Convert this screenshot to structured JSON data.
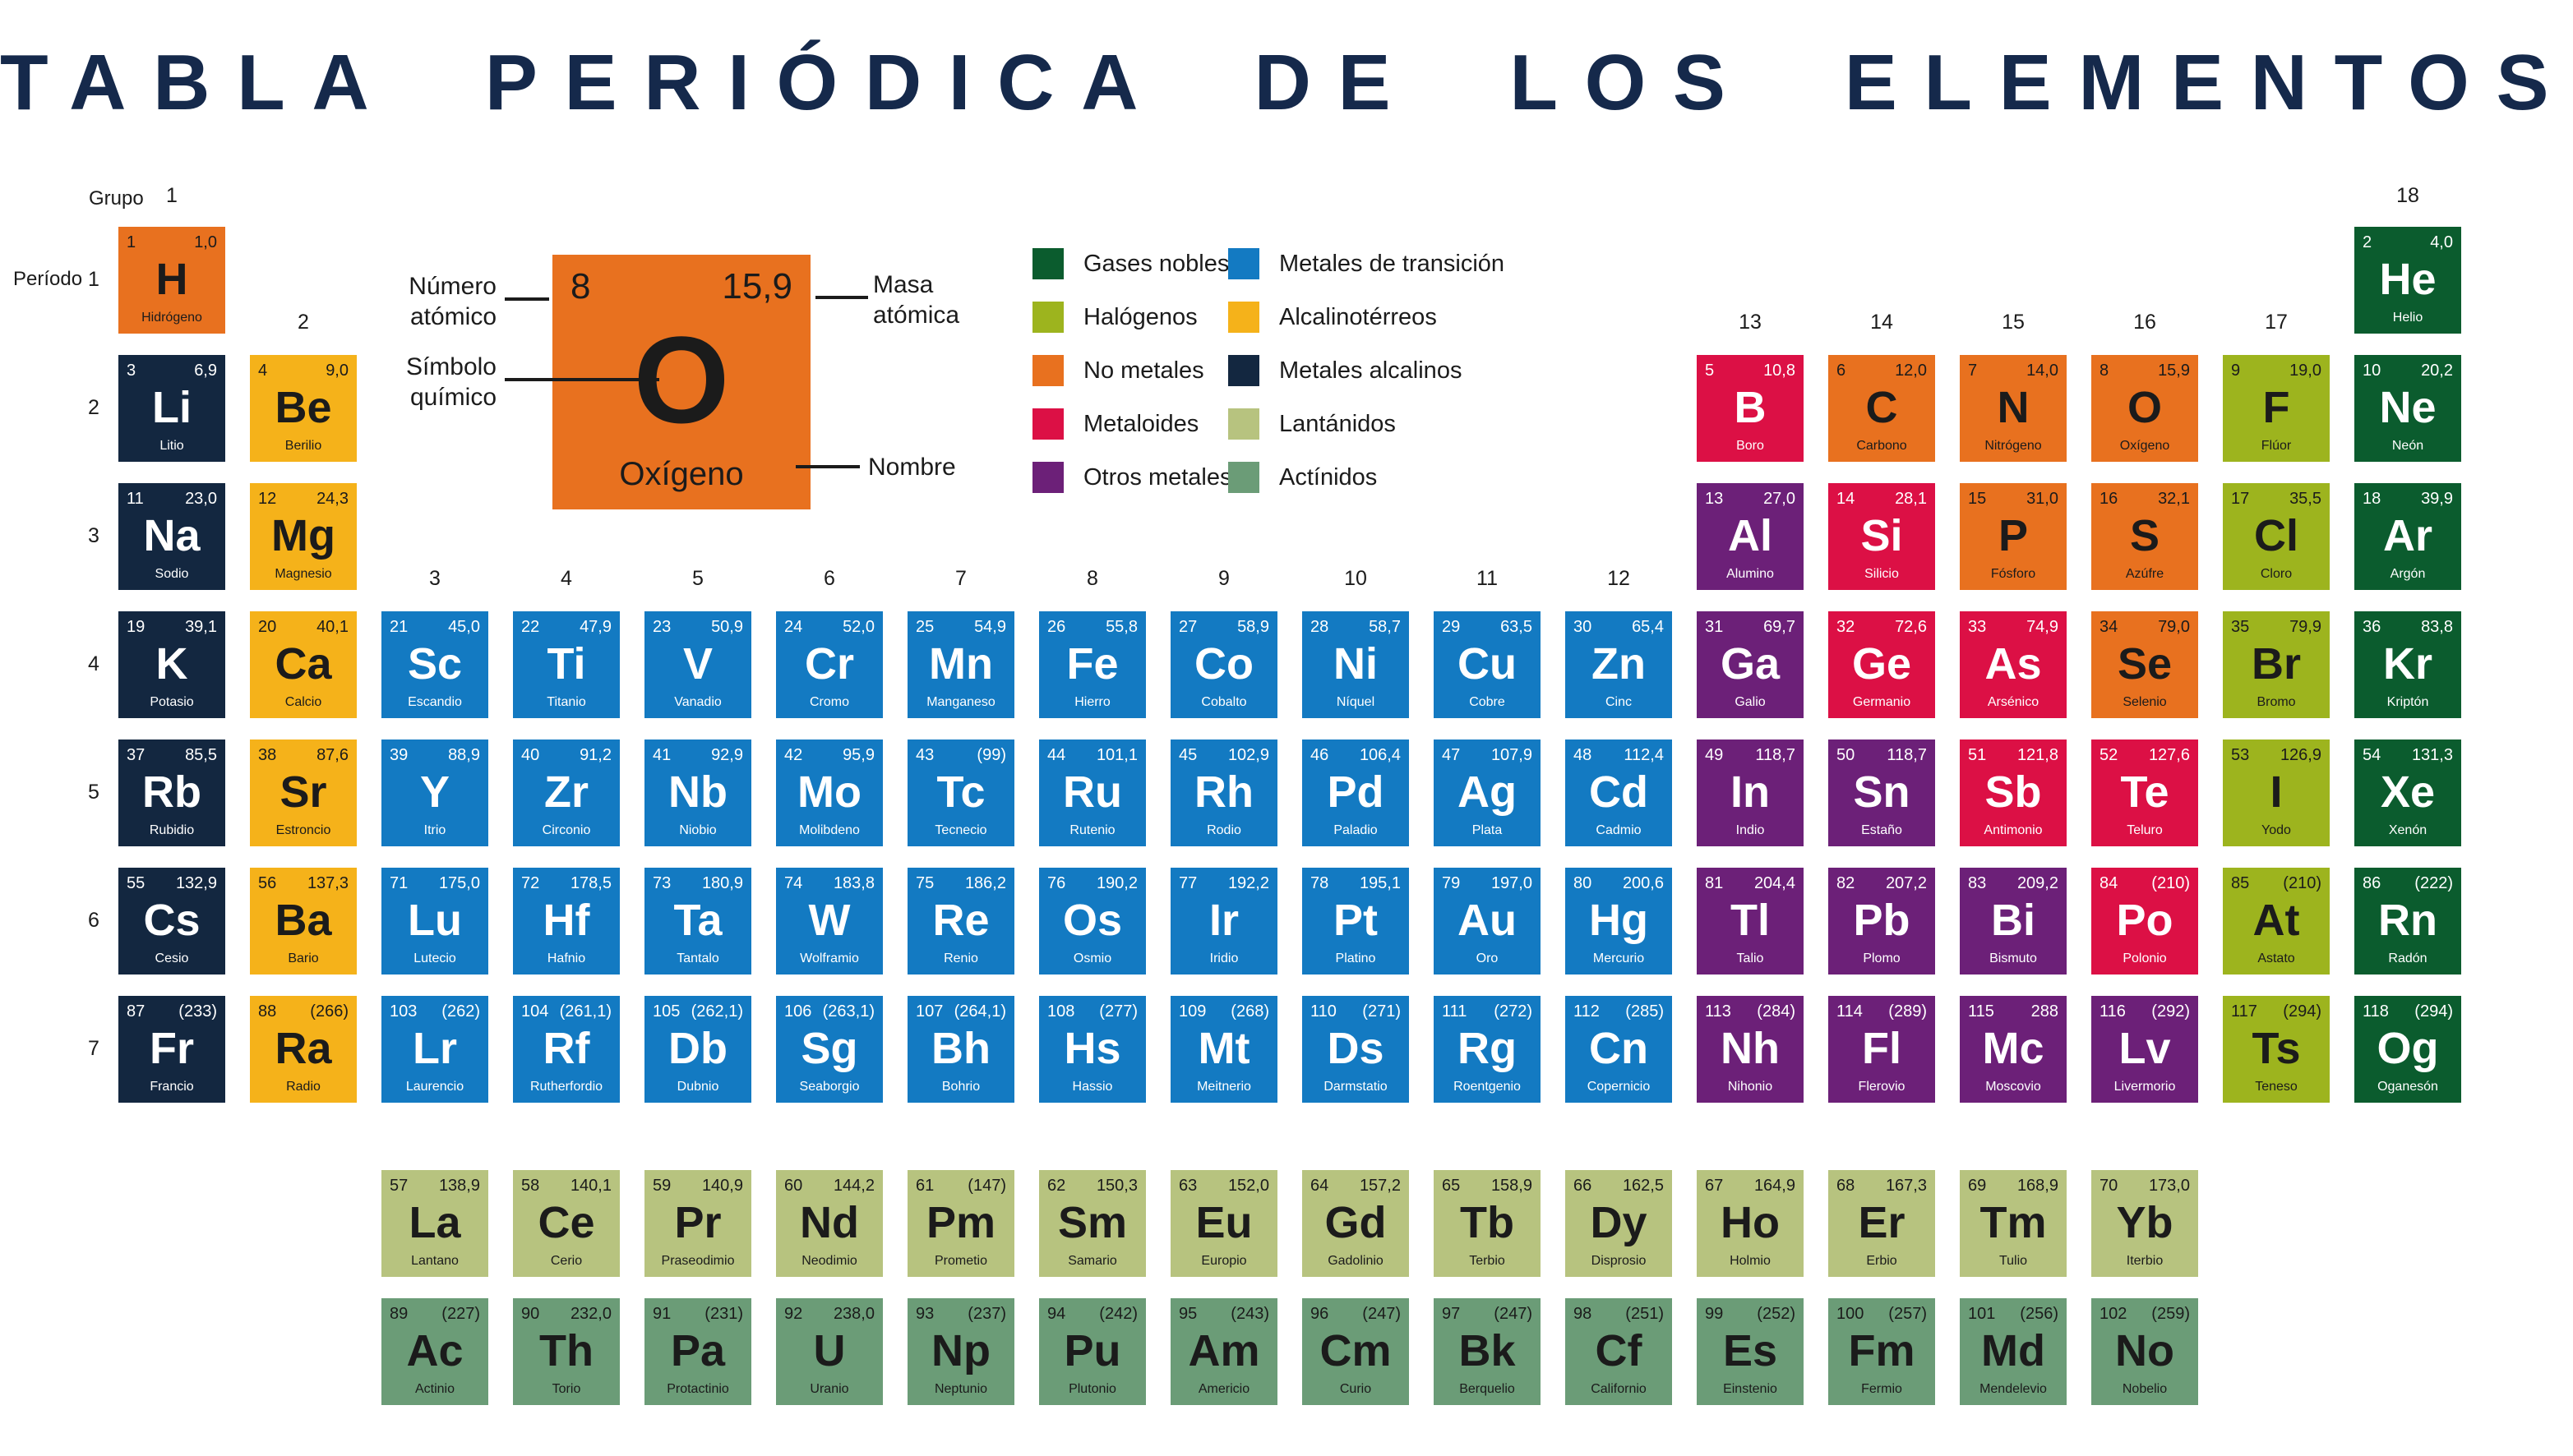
{
  "title": "TABLA PERIÓDICA DE LOS ELEMENTOS",
  "labels": {
    "grupo": "Grupo",
    "periodo": "Período"
  },
  "group_labels": [
    {
      "n": "1",
      "col": 1,
      "band": "top"
    },
    {
      "n": "2",
      "col": 2,
      "band": "mid"
    },
    {
      "n": "3",
      "col": 3,
      "band": "low"
    },
    {
      "n": "4",
      "col": 4,
      "band": "low"
    },
    {
      "n": "5",
      "col": 5,
      "band": "low"
    },
    {
      "n": "6",
      "col": 6,
      "band": "low"
    },
    {
      "n": "7",
      "col": 7,
      "band": "low"
    },
    {
      "n": "8",
      "col": 8,
      "band": "low"
    },
    {
      "n": "9",
      "col": 9,
      "band": "low"
    },
    {
      "n": "10",
      "col": 10,
      "band": "low"
    },
    {
      "n": "11",
      "col": 11,
      "band": "low"
    },
    {
      "n": "12",
      "col": 12,
      "band": "low"
    },
    {
      "n": "13",
      "col": 13,
      "band": "mid"
    },
    {
      "n": "14",
      "col": 14,
      "band": "mid"
    },
    {
      "n": "15",
      "col": 15,
      "band": "mid"
    },
    {
      "n": "16",
      "col": 16,
      "band": "mid"
    },
    {
      "n": "17",
      "col": 17,
      "band": "mid"
    },
    {
      "n": "18",
      "col": 18,
      "band": "top"
    }
  ],
  "period_labels": [
    "1",
    "2",
    "3",
    "4",
    "5",
    "6",
    "7"
  ],
  "example": {
    "atomic_number": "8",
    "mass": "15,9",
    "symbol": "O",
    "name": "Oxígeno",
    "callouts": {
      "numero_l1": "Número",
      "numero_l2": "atómico",
      "simbolo_l1": "Símbolo",
      "simbolo_l2": "químico",
      "masa_l1": "Masa",
      "masa_l2": "atómica",
      "nombre": "Nombre"
    }
  },
  "legend": {
    "left": [
      {
        "label": "Gases nobles",
        "cat": "noble"
      },
      {
        "label": "Halógenos",
        "cat": "halogen"
      },
      {
        "label": "No metales",
        "cat": "nonmetal"
      },
      {
        "label": "Metaloides",
        "cat": "metalloid"
      },
      {
        "label": "Otros metales",
        "cat": "other"
      }
    ],
    "right": [
      {
        "label": "Metales de transición",
        "cat": "transition"
      },
      {
        "label": "Alcalinotérreos",
        "cat": "alkaline"
      },
      {
        "label": "Metales alcalinos",
        "cat": "alkali"
      },
      {
        "label": "Lantánidos",
        "cat": "lanthanide"
      },
      {
        "label": "Actínidos",
        "cat": "actinide"
      }
    ]
  },
  "categories": {
    "noble": {
      "bg": "#0b5c2e",
      "fg": "#ffffff"
    },
    "halogen": {
      "bg": "#9db41e",
      "fg": "#1b1b1b"
    },
    "nonmetal": {
      "bg": "#e8711f",
      "fg": "#1b1b1b"
    },
    "metalloid": {
      "bg": "#dc1045",
      "fg": "#ffffff"
    },
    "other": {
      "bg": "#6c2078",
      "fg": "#ffffff"
    },
    "transition": {
      "bg": "#137ac2",
      "fg": "#ffffff"
    },
    "alkaline": {
      "bg": "#f5b21a",
      "fg": "#1b1b1b"
    },
    "alkali": {
      "bg": "#132740",
      "fg": "#ffffff"
    },
    "lanthanide": {
      "bg": "#b7c37f",
      "fg": "#1b1b1b"
    },
    "actinide": {
      "bg": "#6b9c77",
      "fg": "#1b1b1b"
    }
  },
  "elements": [
    {
      "z": "1",
      "s": "H",
      "n": "Hidrógeno",
      "m": "1,0",
      "c": "nonmetal",
      "r": 1,
      "g": 1
    },
    {
      "z": "2",
      "s": "He",
      "n": "Helio",
      "m": "4,0",
      "c": "noble",
      "r": 1,
      "g": 18
    },
    {
      "z": "3",
      "s": "Li",
      "n": "Litio",
      "m": "6,9",
      "c": "alkali",
      "r": 2,
      "g": 1
    },
    {
      "z": "4",
      "s": "Be",
      "n": "Berilio",
      "m": "9,0",
      "c": "alkaline",
      "r": 2,
      "g": 2
    },
    {
      "z": "5",
      "s": "B",
      "n": "Boro",
      "m": "10,8",
      "c": "metalloid",
      "r": 2,
      "g": 13
    },
    {
      "z": "6",
      "s": "C",
      "n": "Carbono",
      "m": "12,0",
      "c": "nonmetal",
      "r": 2,
      "g": 14
    },
    {
      "z": "7",
      "s": "N",
      "n": "Nitrógeno",
      "m": "14,0",
      "c": "nonmetal",
      "r": 2,
      "g": 15
    },
    {
      "z": "8",
      "s": "O",
      "n": "Oxígeno",
      "m": "15,9",
      "c": "nonmetal",
      "r": 2,
      "g": 16
    },
    {
      "z": "9",
      "s": "F",
      "n": "Flúor",
      "m": "19,0",
      "c": "halogen",
      "r": 2,
      "g": 17
    },
    {
      "z": "10",
      "s": "Ne",
      "n": "Neón",
      "m": "20,2",
      "c": "noble",
      "r": 2,
      "g": 18
    },
    {
      "z": "11",
      "s": "Na",
      "n": "Sodio",
      "m": "23,0",
      "c": "alkali",
      "r": 3,
      "g": 1
    },
    {
      "z": "12",
      "s": "Mg",
      "n": "Magnesio",
      "m": "24,3",
      "c": "alkaline",
      "r": 3,
      "g": 2
    },
    {
      "z": "13",
      "s": "Al",
      "n": "Alumino",
      "m": "27,0",
      "c": "other",
      "r": 3,
      "g": 13
    },
    {
      "z": "14",
      "s": "Si",
      "n": "Silicio",
      "m": "28,1",
      "c": "metalloid",
      "r": 3,
      "g": 14
    },
    {
      "z": "15",
      "s": "P",
      "n": "Fósforo",
      "m": "31,0",
      "c": "nonmetal",
      "r": 3,
      "g": 15
    },
    {
      "z": "16",
      "s": "S",
      "n": "Azúfre",
      "m": "32,1",
      "c": "nonmetal",
      "r": 3,
      "g": 16
    },
    {
      "z": "17",
      "s": "Cl",
      "n": "Cloro",
      "m": "35,5",
      "c": "halogen",
      "r": 3,
      "g": 17
    },
    {
      "z": "18",
      "s": "Ar",
      "n": "Argón",
      "m": "39,9",
      "c": "noble",
      "r": 3,
      "g": 18
    },
    {
      "z": "19",
      "s": "K",
      "n": "Potasio",
      "m": "39,1",
      "c": "alkali",
      "r": 4,
      "g": 1
    },
    {
      "z": "20",
      "s": "Ca",
      "n": "Calcio",
      "m": "40,1",
      "c": "alkaline",
      "r": 4,
      "g": 2
    },
    {
      "z": "21",
      "s": "Sc",
      "n": "Escandio",
      "m": "45,0",
      "c": "transition",
      "r": 4,
      "g": 3
    },
    {
      "z": "22",
      "s": "Ti",
      "n": "Titanio",
      "m": "47,9",
      "c": "transition",
      "r": 4,
      "g": 4
    },
    {
      "z": "23",
      "s": "V",
      "n": "Vanadio",
      "m": "50,9",
      "c": "transition",
      "r": 4,
      "g": 5
    },
    {
      "z": "24",
      "s": "Cr",
      "n": "Cromo",
      "m": "52,0",
      "c": "transition",
      "r": 4,
      "g": 6
    },
    {
      "z": "25",
      "s": "Mn",
      "n": "Manganeso",
      "m": "54,9",
      "c": "transition",
      "r": 4,
      "g": 7
    },
    {
      "z": "26",
      "s": "Fe",
      "n": "Hierro",
      "m": "55,8",
      "c": "transition",
      "r": 4,
      "g": 8
    },
    {
      "z": "27",
      "s": "Co",
      "n": "Cobalto",
      "m": "58,9",
      "c": "transition",
      "r": 4,
      "g": 9
    },
    {
      "z": "28",
      "s": "Ni",
      "n": "Níquel",
      "m": "58,7",
      "c": "transition",
      "r": 4,
      "g": 10
    },
    {
      "z": "29",
      "s": "Cu",
      "n": "Cobre",
      "m": "63,5",
      "c": "transition",
      "r": 4,
      "g": 11
    },
    {
      "z": "30",
      "s": "Zn",
      "n": "Cinc",
      "m": "65,4",
      "c": "transition",
      "r": 4,
      "g": 12
    },
    {
      "z": "31",
      "s": "Ga",
      "n": "Galio",
      "m": "69,7",
      "c": "other",
      "r": 4,
      "g": 13
    },
    {
      "z": "32",
      "s": "Ge",
      "n": "Germanio",
      "m": "72,6",
      "c": "metalloid",
      "r": 4,
      "g": 14
    },
    {
      "z": "33",
      "s": "As",
      "n": "Arsénico",
      "m": "74,9",
      "c": "metalloid",
      "r": 4,
      "g": 15
    },
    {
      "z": "34",
      "s": "Se",
      "n": "Selenio",
      "m": "79,0",
      "c": "nonmetal",
      "r": 4,
      "g": 16
    },
    {
      "z": "35",
      "s": "Br",
      "n": "Bromo",
      "m": "79,9",
      "c": "halogen",
      "r": 4,
      "g": 17
    },
    {
      "z": "36",
      "s": "Kr",
      "n": "Kriptón",
      "m": "83,8",
      "c": "noble",
      "r": 4,
      "g": 18
    },
    {
      "z": "37",
      "s": "Rb",
      "n": "Rubidio",
      "m": "85,5",
      "c": "alkali",
      "r": 5,
      "g": 1
    },
    {
      "z": "38",
      "s": "Sr",
      "n": "Estroncio",
      "m": "87,6",
      "c": "alkaline",
      "r": 5,
      "g": 2
    },
    {
      "z": "39",
      "s": "Y",
      "n": "Itrio",
      "m": "88,9",
      "c": "transition",
      "r": 5,
      "g": 3
    },
    {
      "z": "40",
      "s": "Zr",
      "n": "Circonio",
      "m": "91,2",
      "c": "transition",
      "r": 5,
      "g": 4
    },
    {
      "z": "41",
      "s": "Nb",
      "n": "Niobio",
      "m": "92,9",
      "c": "transition",
      "r": 5,
      "g": 5
    },
    {
      "z": "42",
      "s": "Mo",
      "n": "Molibdeno",
      "m": "95,9",
      "c": "transition",
      "r": 5,
      "g": 6
    },
    {
      "z": "43",
      "s": "Tc",
      "n": "Tecnecio",
      "m": "(99)",
      "c": "transition",
      "r": 5,
      "g": 7
    },
    {
      "z": "44",
      "s": "Ru",
      "n": "Rutenio",
      "m": "101,1",
      "c": "transition",
      "r": 5,
      "g": 8
    },
    {
      "z": "45",
      "s": "Rh",
      "n": "Rodio",
      "m": "102,9",
      "c": "transition",
      "r": 5,
      "g": 9
    },
    {
      "z": "46",
      "s": "Pd",
      "n": "Paladio",
      "m": "106,4",
      "c": "transition",
      "r": 5,
      "g": 10
    },
    {
      "z": "47",
      "s": "Ag",
      "n": "Plata",
      "m": "107,9",
      "c": "transition",
      "r": 5,
      "g": 11
    },
    {
      "z": "48",
      "s": "Cd",
      "n": "Cadmio",
      "m": "112,4",
      "c": "transition",
      "r": 5,
      "g": 12
    },
    {
      "z": "49",
      "s": "In",
      "n": "Indio",
      "m": "118,7",
      "c": "other",
      "r": 5,
      "g": 13
    },
    {
      "z": "50",
      "s": "Sn",
      "n": "Estaño",
      "m": "118,7",
      "c": "other",
      "r": 5,
      "g": 14
    },
    {
      "z": "51",
      "s": "Sb",
      "n": "Antimonio",
      "m": "121,8",
      "c": "metalloid",
      "r": 5,
      "g": 15
    },
    {
      "z": "52",
      "s": "Te",
      "n": "Teluro",
      "m": "127,6",
      "c": "metalloid",
      "r": 5,
      "g": 16
    },
    {
      "z": "53",
      "s": "I",
      "n": "Yodo",
      "m": "126,9",
      "c": "halogen",
      "r": 5,
      "g": 17
    },
    {
      "z": "54",
      "s": "Xe",
      "n": "Xenón",
      "m": "131,3",
      "c": "noble",
      "r": 5,
      "g": 18
    },
    {
      "z": "55",
      "s": "Cs",
      "n": "Cesio",
      "m": "132,9",
      "c": "alkali",
      "r": 6,
      "g": 1
    },
    {
      "z": "56",
      "s": "Ba",
      "n": "Bario",
      "m": "137,3",
      "c": "alkaline",
      "r": 6,
      "g": 2
    },
    {
      "z": "71",
      "s": "Lu",
      "n": "Lutecio",
      "m": "175,0",
      "c": "transition",
      "r": 6,
      "g": 3
    },
    {
      "z": "72",
      "s": "Hf",
      "n": "Hafnio",
      "m": "178,5",
      "c": "transition",
      "r": 6,
      "g": 4
    },
    {
      "z": "73",
      "s": "Ta",
      "n": "Tantalo",
      "m": "180,9",
      "c": "transition",
      "r": 6,
      "g": 5
    },
    {
      "z": "74",
      "s": "W",
      "n": "Wolframio",
      "m": "183,8",
      "c": "transition",
      "r": 6,
      "g": 6
    },
    {
      "z": "75",
      "s": "Re",
      "n": "Renio",
      "m": "186,2",
      "c": "transition",
      "r": 6,
      "g": 7
    },
    {
      "z": "76",
      "s": "Os",
      "n": "Osmio",
      "m": "190,2",
      "c": "transition",
      "r": 6,
      "g": 8
    },
    {
      "z": "77",
      "s": "Ir",
      "n": "Iridio",
      "m": "192,2",
      "c": "transition",
      "r": 6,
      "g": 9
    },
    {
      "z": "78",
      "s": "Pt",
      "n": "Platino",
      "m": "195,1",
      "c": "transition",
      "r": 6,
      "g": 10
    },
    {
      "z": "79",
      "s": "Au",
      "n": "Oro",
      "m": "197,0",
      "c": "transition",
      "r": 6,
      "g": 11
    },
    {
      "z": "80",
      "s": "Hg",
      "n": "Mercurio",
      "m": "200,6",
      "c": "transition",
      "r": 6,
      "g": 12
    },
    {
      "z": "81",
      "s": "Tl",
      "n": "Talio",
      "m": "204,4",
      "c": "other",
      "r": 6,
      "g": 13
    },
    {
      "z": "82",
      "s": "Pb",
      "n": "Plomo",
      "m": "207,2",
      "c": "other",
      "r": 6,
      "g": 14
    },
    {
      "z": "83",
      "s": "Bi",
      "n": "Bismuto",
      "m": "209,2",
      "c": "other",
      "r": 6,
      "g": 15
    },
    {
      "z": "84",
      "s": "Po",
      "n": "Polonio",
      "m": "(210)",
      "c": "metalloid",
      "r": 6,
      "g": 16
    },
    {
      "z": "85",
      "s": "At",
      "n": "Astato",
      "m": "(210)",
      "c": "halogen",
      "r": 6,
      "g": 17
    },
    {
      "z": "86",
      "s": "Rn",
      "n": "Radón",
      "m": "(222)",
      "c": "noble",
      "r": 6,
      "g": 18
    },
    {
      "z": "87",
      "s": "Fr",
      "n": "Francio",
      "m": "(233)",
      "c": "alkali",
      "r": 7,
      "g": 1
    },
    {
      "z": "88",
      "s": "Ra",
      "n": "Radio",
      "m": "(266)",
      "c": "alkaline",
      "r": 7,
      "g": 2
    },
    {
      "z": "103",
      "s": "Lr",
      "n": "Laurencio",
      "m": "(262)",
      "c": "transition",
      "r": 7,
      "g": 3
    },
    {
      "z": "104",
      "s": "Rf",
      "n": "Rutherfordio",
      "m": "(261,1)",
      "c": "transition",
      "r": 7,
      "g": 4
    },
    {
      "z": "105",
      "s": "Db",
      "n": "Dubnio",
      "m": "(262,1)",
      "c": "transition",
      "r": 7,
      "g": 5
    },
    {
      "z": "106",
      "s": "Sg",
      "n": "Seaborgio",
      "m": "(263,1)",
      "c": "transition",
      "r": 7,
      "g": 6
    },
    {
      "z": "107",
      "s": "Bh",
      "n": "Bohrio",
      "m": "(264,1)",
      "c": "transition",
      "r": 7,
      "g": 7
    },
    {
      "z": "108",
      "s": "Hs",
      "n": "Hassio",
      "m": "(277)",
      "c": "transition",
      "r": 7,
      "g": 8
    },
    {
      "z": "109",
      "s": "Mt",
      "n": "Meitnerio",
      "m": "(268)",
      "c": "transition",
      "r": 7,
      "g": 9
    },
    {
      "z": "110",
      "s": "Ds",
      "n": "Darmstatio",
      "m": "(271)",
      "c": "transition",
      "r": 7,
      "g": 10
    },
    {
      "z": "111",
      "s": "Rg",
      "n": "Roentgenio",
      "m": "(272)",
      "c": "transition",
      "r": 7,
      "g": 11
    },
    {
      "z": "112",
      "s": "Cn",
      "n": "Copernicio",
      "m": "(285)",
      "c": "transition",
      "r": 7,
      "g": 12
    },
    {
      "z": "113",
      "s": "Nh",
      "n": "Nihonio",
      "m": "(284)",
      "c": "other",
      "r": 7,
      "g": 13
    },
    {
      "z": "114",
      "s": "Fl",
      "n": "Flerovio",
      "m": "(289)",
      "c": "other",
      "r": 7,
      "g": 14
    },
    {
      "z": "115",
      "s": "Mc",
      "n": "Moscovio",
      "m": "288",
      "c": "other",
      "r": 7,
      "g": 15
    },
    {
      "z": "116",
      "s": "Lv",
      "n": "Livermorio",
      "m": "(292)",
      "c": "other",
      "r": 7,
      "g": 16
    },
    {
      "z": "117",
      "s": "Ts",
      "n": "Teneso",
      "m": "(294)",
      "c": "halogen",
      "r": 7,
      "g": 17
    },
    {
      "z": "118",
      "s": "Og",
      "n": "Oganesón",
      "m": "(294)",
      "c": "noble",
      "r": 7,
      "g": 18
    },
    {
      "z": "57",
      "s": "La",
      "n": "Lantano",
      "m": "138,9",
      "c": "lanthanide",
      "r": 9,
      "g": 3
    },
    {
      "z": "58",
      "s": "Ce",
      "n": "Cerio",
      "m": "140,1",
      "c": "lanthanide",
      "r": 9,
      "g": 4
    },
    {
      "z": "59",
      "s": "Pr",
      "n": "Praseodimio",
      "m": "140,9",
      "c": "lanthanide",
      "r": 9,
      "g": 5
    },
    {
      "z": "60",
      "s": "Nd",
      "n": "Neodimio",
      "m": "144,2",
      "c": "lanthanide",
      "r": 9,
      "g": 6
    },
    {
      "z": "61",
      "s": "Pm",
      "n": "Prometio",
      "m": "(147)",
      "c": "lanthanide",
      "r": 9,
      "g": 7
    },
    {
      "z": "62",
      "s": "Sm",
      "n": "Samario",
      "m": "150,3",
      "c": "lanthanide",
      "r": 9,
      "g": 8
    },
    {
      "z": "63",
      "s": "Eu",
      "n": "Europio",
      "m": "152,0",
      "c": "lanthanide",
      "r": 9,
      "g": 9
    },
    {
      "z": "64",
      "s": "Gd",
      "n": "Gadolinio",
      "m": "157,2",
      "c": "lanthanide",
      "r": 9,
      "g": 10
    },
    {
      "z": "65",
      "s": "Tb",
      "n": "Terbio",
      "m": "158,9",
      "c": "lanthanide",
      "r": 9,
      "g": 11
    },
    {
      "z": "66",
      "s": "Dy",
      "n": "Disprosio",
      "m": "162,5",
      "c": "lanthanide",
      "r": 9,
      "g": 12
    },
    {
      "z": "67",
      "s": "Ho",
      "n": "Holmio",
      "m": "164,9",
      "c": "lanthanide",
      "r": 9,
      "g": 13
    },
    {
      "z": "68",
      "s": "Er",
      "n": "Erbio",
      "m": "167,3",
      "c": "lanthanide",
      "r": 9,
      "g": 14
    },
    {
      "z": "69",
      "s": "Tm",
      "n": "Tulio",
      "m": "168,9",
      "c": "lanthanide",
      "r": 9,
      "g": 15
    },
    {
      "z": "70",
      "s": "Yb",
      "n": "Iterbio",
      "m": "173,0",
      "c": "lanthanide",
      "r": 9,
      "g": 16
    },
    {
      "z": "89",
      "s": "Ac",
      "n": "Actinio",
      "m": "(227)",
      "c": "actinide",
      "r": 10,
      "g": 3
    },
    {
      "z": "90",
      "s": "Th",
      "n": "Torio",
      "m": "232,0",
      "c": "actinide",
      "r": 10,
      "g": 4
    },
    {
      "z": "91",
      "s": "Pa",
      "n": "Protactinio",
      "m": "(231)",
      "c": "actinide",
      "r": 10,
      "g": 5
    },
    {
      "z": "92",
      "s": "U",
      "n": "Uranio",
      "m": "238,0",
      "c": "actinide",
      "r": 10,
      "g": 6
    },
    {
      "z": "93",
      "s": "Np",
      "n": "Neptunio",
      "m": "(237)",
      "c": "actinide",
      "r": 10,
      "g": 7
    },
    {
      "z": "94",
      "s": "Pu",
      "n": "Plutonio",
      "m": "(242)",
      "c": "actinide",
      "r": 10,
      "g": 8
    },
    {
      "z": "95",
      "s": "Am",
      "n": "Americio",
      "m": "(243)",
      "c": "actinide",
      "r": 10,
      "g": 9
    },
    {
      "z": "96",
      "s": "Cm",
      "n": "Curio",
      "m": "(247)",
      "c": "actinide",
      "r": 10,
      "g": 10
    },
    {
      "z": "97",
      "s": "Bk",
      "n": "Berquelio",
      "m": "(247)",
      "c": "actinide",
      "r": 10,
      "g": 11
    },
    {
      "z": "98",
      "s": "Cf",
      "n": "Californio",
      "m": "(251)",
      "c": "actinide",
      "r": 10,
      "g": 12
    },
    {
      "z": "99",
      "s": "Es",
      "n": "Einstenio",
      "m": "(252)",
      "c": "actinide",
      "r": 10,
      "g": 13
    },
    {
      "z": "100",
      "s": "Fm",
      "n": "Fermio",
      "m": "(257)",
      "c": "actinide",
      "r": 10,
      "g": 14
    },
    {
      "z": "101",
      "s": "Md",
      "n": "Mendelevio",
      "m": "(256)",
      "c": "actinide",
      "r": 10,
      "g": 15
    },
    {
      "z": "102",
      "s": "No",
      "n": "Nobelio",
      "m": "(259)",
      "c": "actinide",
      "r": 10,
      "g": 16
    }
  ]
}
